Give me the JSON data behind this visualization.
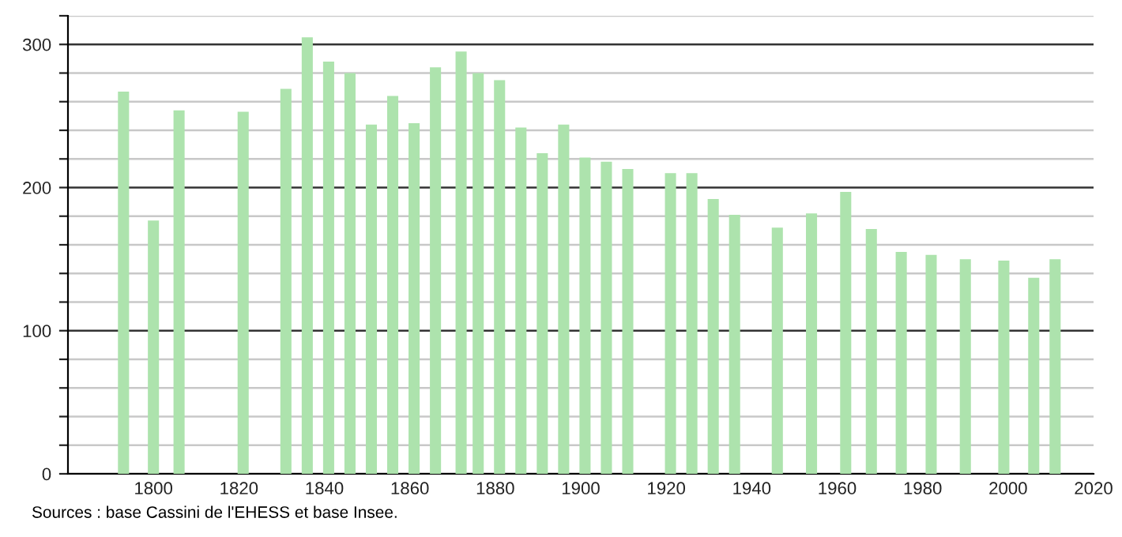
{
  "chart_data": {
    "type": "bar",
    "x": [
      1793,
      1800,
      1806,
      1821,
      1831,
      1836,
      1841,
      1846,
      1851,
      1856,
      1861,
      1866,
      1872,
      1876,
      1881,
      1886,
      1891,
      1896,
      1901,
      1906,
      1911,
      1921,
      1926,
      1931,
      1936,
      1946,
      1954,
      1962,
      1968,
      1975,
      1982,
      1990,
      1999,
      2006,
      2011
    ],
    "series": [
      {
        "color": "#ade3ad",
        "values": [
          267,
          177,
          254,
          253,
          269,
          305,
          288,
          280,
          244,
          264,
          245,
          284,
          295,
          280,
          275,
          242,
          224,
          244,
          221,
          218,
          213,
          210,
          210,
          192,
          181,
          172,
          182,
          197,
          171,
          155,
          153,
          150,
          149,
          137,
          150
        ]
      }
    ],
    "xlim": [
      1780,
      2020
    ],
    "xticks": [
      1800,
      1820,
      1840,
      1860,
      1880,
      1900,
      1920,
      1940,
      1960,
      1980,
      2000,
      2020
    ],
    "ylim": [
      0,
      320
    ],
    "yticks": [
      0,
      {
        "value": 20,
        "label": null
      },
      {
        "value": 40,
        "label": null
      },
      {
        "value": 60,
        "label": null
      },
      {
        "value": 80,
        "label": null
      },
      100,
      {
        "value": 120,
        "label": null
      },
      {
        "value": 140,
        "label": null
      },
      {
        "value": 160,
        "label": null
      },
      {
        "value": 180,
        "label": null
      },
      200,
      {
        "value": 220,
        "label": null
      },
      {
        "value": 240,
        "label": null
      },
      {
        "value": 260,
        "label": null
      },
      {
        "value": 280,
        "label": null
      },
      300,
      {
        "value": 320,
        "label": null
      }
    ],
    "grid": "y",
    "annotations": [
      "Sources : base Cassini de l'EHESS et base Insee."
    ]
  }
}
